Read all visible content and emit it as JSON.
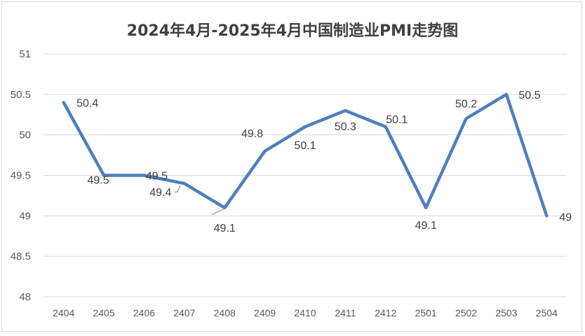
{
  "chart_data": {
    "type": "line",
    "title": "2024年4月-2025年4月中国制造业PMI走势图",
    "xlabel": "",
    "ylabel": "",
    "categories": [
      "2404",
      "2405",
      "2406",
      "2407",
      "2408",
      "2409",
      "2410",
      "2411",
      "2412",
      "2501",
      "2502",
      "2503",
      "2504"
    ],
    "series": [
      {
        "values": [
          50.4,
          49.5,
          49.5,
          49.4,
          49.1,
          49.8,
          50.1,
          50.3,
          50.1,
          49.1,
          50.2,
          50.5,
          49.0
        ],
        "data_labels": [
          "50.4",
          "49.5",
          "49.5",
          "49.4",
          "49.1",
          "49.8",
          "50.1",
          "50.3",
          "50.1",
          "49.1",
          "50.2",
          "50.5",
          "49"
        ],
        "color": "#4f7fba"
      }
    ],
    "ylim": [
      48,
      51
    ],
    "yticks": [
      "48",
      "48.5",
      "49",
      "49.5",
      "50",
      "50.5",
      "51"
    ],
    "grid": true,
    "legend": "none"
  }
}
